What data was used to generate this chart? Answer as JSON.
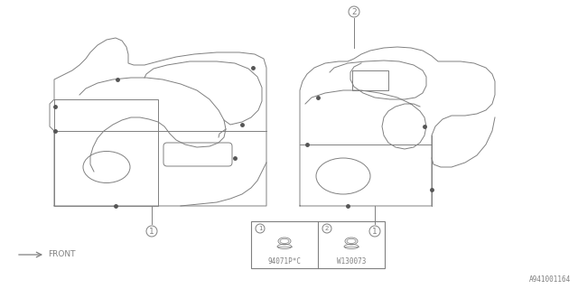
{
  "bg_color": "#ffffff",
  "line_color": "#808080",
  "diagram_id": "A941001164",
  "part1_label": "94071P*C",
  "part2_label": "W130073",
  "front_label": "FRONT"
}
